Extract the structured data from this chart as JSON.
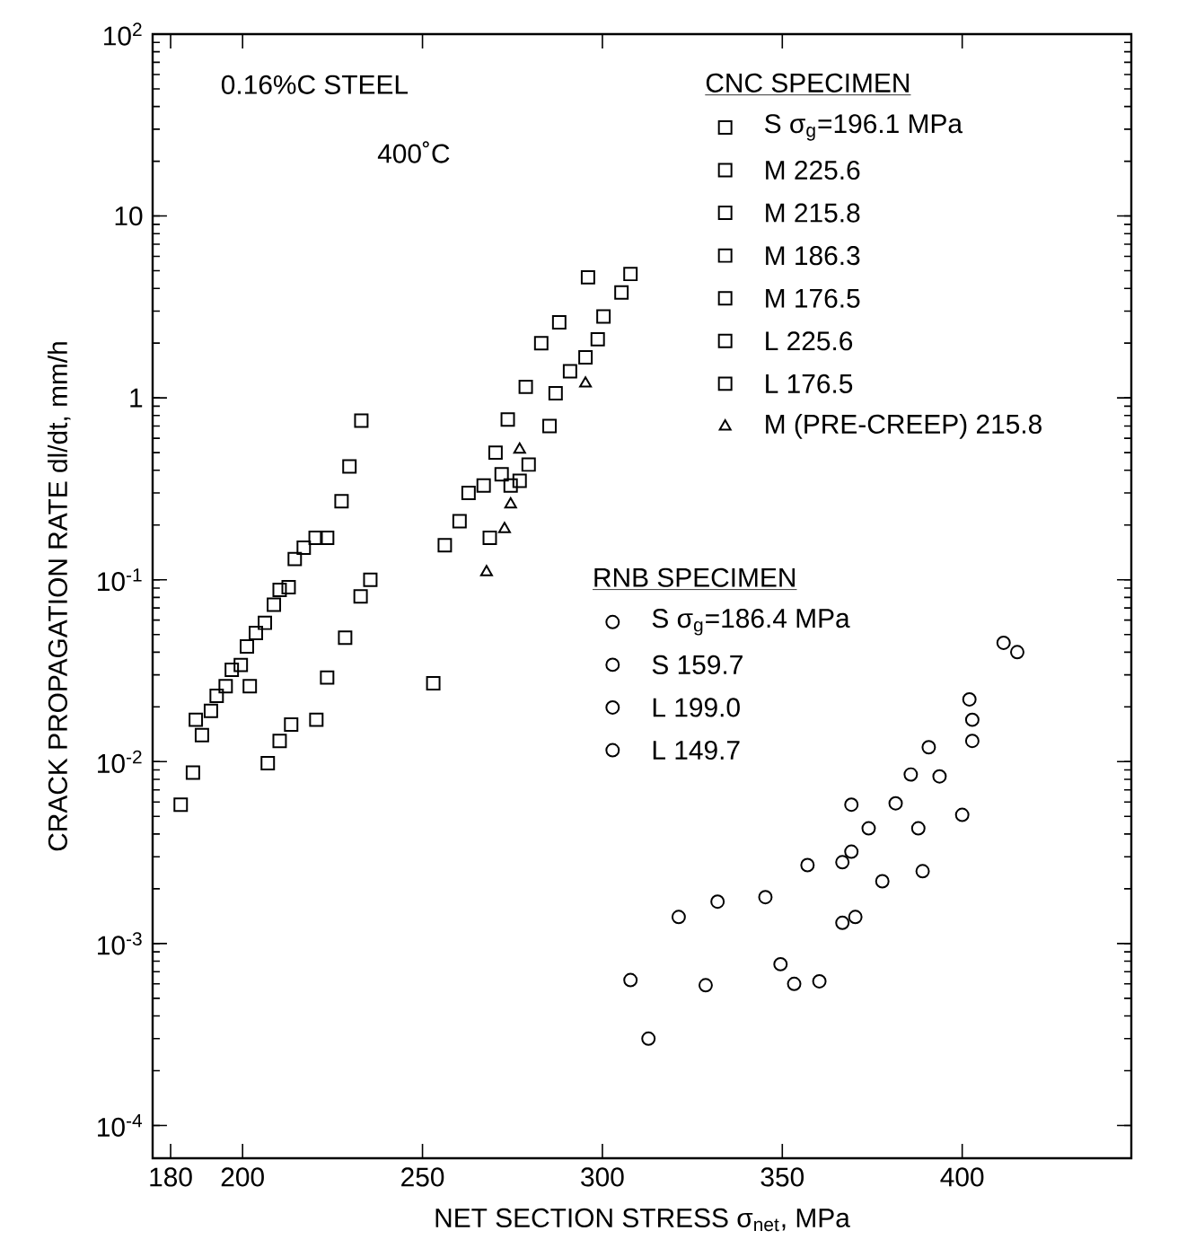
{
  "chart_data": {
    "type": "scatter",
    "xlabel": "NET SECTION STRESS  σ$_{net}$, MPa",
    "ylabel": "CRACK PROPAGATION RATE    dl/dt,  mm/h",
    "log": "y",
    "xlim": [
      175,
      447
    ],
    "ylim": [
      6.6e-05,
      100
    ],
    "xticks": [
      180,
      200,
      250,
      300,
      350,
      400
    ],
    "yticks": [
      {
        "value": 0.0001,
        "label": "10$^{-4}$"
      },
      {
        "value": 0.001,
        "label": "10$^{-3}$"
      },
      {
        "value": 0.01,
        "label": "10$^{-2}$"
      },
      {
        "value": 0.1,
        "label": "10$^{-1}$"
      },
      1,
      10,
      {
        "value": 100,
        "label": "10$^{2}$"
      }
    ],
    "annotations": [
      "0.16%C STEEL",
      "400˚C",
      "CNC SPECIMEN",
      "RNB SPECIMEN"
    ],
    "legend": "top right",
    "grid": false,
    "series": [
      {
        "name": "S  σ$_{g}$=196.1 MPa",
        "color": "#000000",
        "marker": "square",
        "x": [
          223.5,
          227.5,
          229.7,
          233
        ],
        "values": [
          0.17,
          0.27,
          0.42,
          0.75
        ]
      },
      {
        "name": "M  225.6",
        "color": "#000000",
        "marker": "square",
        "x": [
          268.7,
          272,
          274.5
        ],
        "values": [
          0.17,
          0.38,
          0.33
        ]
      },
      {
        "name": "M  215.8",
        "color": "#000000",
        "marker": "square",
        "x": [
          253,
          256.2,
          260.3,
          262.8,
          267,
          270.3,
          273.7,
          278.7,
          283,
          288,
          296
        ],
        "values": [
          0.027,
          0.155,
          0.21,
          0.3,
          0.33,
          0.5,
          0.76,
          1.15,
          2.0,
          2.6,
          4.6
        ]
      },
      {
        "name": "M  186.3",
        "color": "#000000",
        "marker": "square",
        "x": [
          207,
          210.3,
          213.5,
          220.5,
          223.5,
          228.5,
          232.8,
          235.5
        ],
        "values": [
          0.0098,
          0.013,
          0.016,
          0.017,
          0.029,
          0.048,
          0.081,
          0.1
        ]
      },
      {
        "name": "M  176.5",
        "color": "#000000",
        "marker": "square",
        "x": [
          182.8,
          186.2,
          188.7,
          191.2,
          195.3,
          197,
          201.2,
          202,
          203.7,
          208.7,
          210.3,
          214.5,
          220.3
        ],
        "values": [
          0.0058,
          0.0087,
          0.014,
          0.019,
          0.026,
          0.032,
          0.043,
          0.026,
          0.051,
          0.073,
          0.088,
          0.13,
          0.17
        ]
      },
      {
        "name": "L  225.6",
        "color": "#000000",
        "marker": "square",
        "x": [
          277,
          279.5,
          285.3,
          287,
          291,
          295.3,
          298.7,
          300.3,
          305.3,
          307.8
        ],
        "values": [
          0.35,
          0.43,
          0.7,
          1.06,
          1.4,
          1.67,
          2.1,
          2.8,
          3.8,
          4.8
        ]
      },
      {
        "name": "L  176.5",
        "color": "#000000",
        "marker": "square",
        "x": [
          187,
          192.8,
          199.5,
          206.2,
          212.8,
          217
        ],
        "values": [
          0.017,
          0.023,
          0.034,
          0.058,
          0.091,
          0.15
        ]
      },
      {
        "name": "M (PRE-CREEP) 215.8",
        "color": "#000000",
        "marker": "triangle",
        "x": [
          267.8,
          272.8,
          274.5,
          277,
          295.3
        ],
        "values": [
          0.11,
          0.19,
          0.26,
          0.52,
          1.2
        ]
      },
      {
        "name": "S  σ$_{g}$=186.4 MPa",
        "color": "#000000",
        "marker": "circle",
        "x": [
          353.3,
          360.3,
          370.3,
          377.8,
          387.8,
          393.7,
          402.8
        ],
        "values": [
          0.0006,
          0.00062,
          0.0014,
          0.0022,
          0.0043,
          0.0083,
          0.013
        ]
      },
      {
        "name": "S  159.7",
        "color": "#000000",
        "marker": "circle",
        "x": [
          312.8,
          328.7,
          349.5,
          366.7,
          389,
          400
        ],
        "values": [
          0.0003,
          0.00059,
          0.00077,
          0.0013,
          0.0025,
          0.0051
        ]
      },
      {
        "name": "L  199.0",
        "color": "#000000",
        "marker": "circle",
        "x": [
          366.7,
          369.2,
          374,
          381.5,
          390.7,
          402.8,
          415.3
        ],
        "values": [
          0.0028,
          0.0032,
          0.0043,
          0.0059,
          0.012,
          0.017,
          0.04
        ]
      },
      {
        "name": "L  149.7",
        "color": "#000000",
        "marker": "circle",
        "x": [
          307.8,
          321.2,
          332,
          345.3,
          357,
          369.2,
          385.7,
          402,
          411.5
        ],
        "values": [
          0.00063,
          0.0014,
          0.0017,
          0.0018,
          0.0027,
          0.0058,
          0.0085,
          0.022,
          0.045
        ]
      }
    ]
  }
}
